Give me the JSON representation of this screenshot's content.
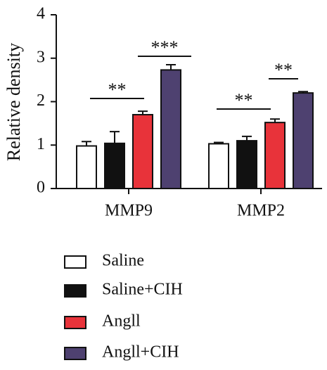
{
  "chart_data": {
    "type": "bar",
    "y_label": "Relative density",
    "categories": [
      "MMP9",
      "MMP2"
    ],
    "series": [
      {
        "name": "Saline",
        "color": "#ffffff",
        "values": [
          0.98,
          1.03
        ],
        "errors": [
          0.1,
          0.03
        ]
      },
      {
        "name": "Saline+CIH",
        "color": "#111111",
        "values": [
          1.04,
          1.1
        ],
        "errors": [
          0.27,
          0.1
        ]
      },
      {
        "name": "Angll",
        "color": "#e8333a",
        "values": [
          1.7,
          1.52
        ],
        "errors": [
          0.08,
          0.08
        ]
      },
      {
        "name": "Angll+CIH",
        "color": "#4e4170",
        "values": [
          2.73,
          2.2
        ],
        "errors": [
          0.12,
          0.03
        ]
      }
    ],
    "annotations": [
      "**",
      "***",
      "**",
      "**"
    ],
    "ylim": [
      0,
      4
    ],
    "yticks": [
      0,
      1,
      2,
      3,
      4
    ],
    "grid": false
  }
}
